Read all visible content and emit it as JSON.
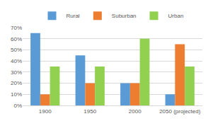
{
  "chart_data": {
    "type": "bar",
    "categories": [
      "1900",
      "1950",
      "2000",
      "2050 (projected)"
    ],
    "series": [
      {
        "name": "Rural",
        "color": "#5b9bd5",
        "values": [
          65,
          45,
          20,
          10
        ]
      },
      {
        "name": "Suburban",
        "color": "#ed7d31",
        "values": [
          10,
          20,
          20,
          55
        ]
      },
      {
        "name": "Urban",
        "color": "#92d050",
        "values": [
          35,
          35,
          60,
          35
        ]
      }
    ],
    "ylim": [
      0,
      70
    ],
    "yticks": [
      {
        "value": 0,
        "label": "0%"
      },
      {
        "value": 10,
        "label": "10%"
      },
      {
        "value": 20,
        "label": "20%"
      },
      {
        "value": 30,
        "label": "30%"
      },
      {
        "value": 40,
        "label": "40%"
      },
      {
        "value": 50,
        "label": "50%"
      },
      {
        "value": 60,
        "label": "60%"
      },
      {
        "value": 70,
        "label": "70%"
      }
    ],
    "grid": true,
    "legend": "top"
  }
}
